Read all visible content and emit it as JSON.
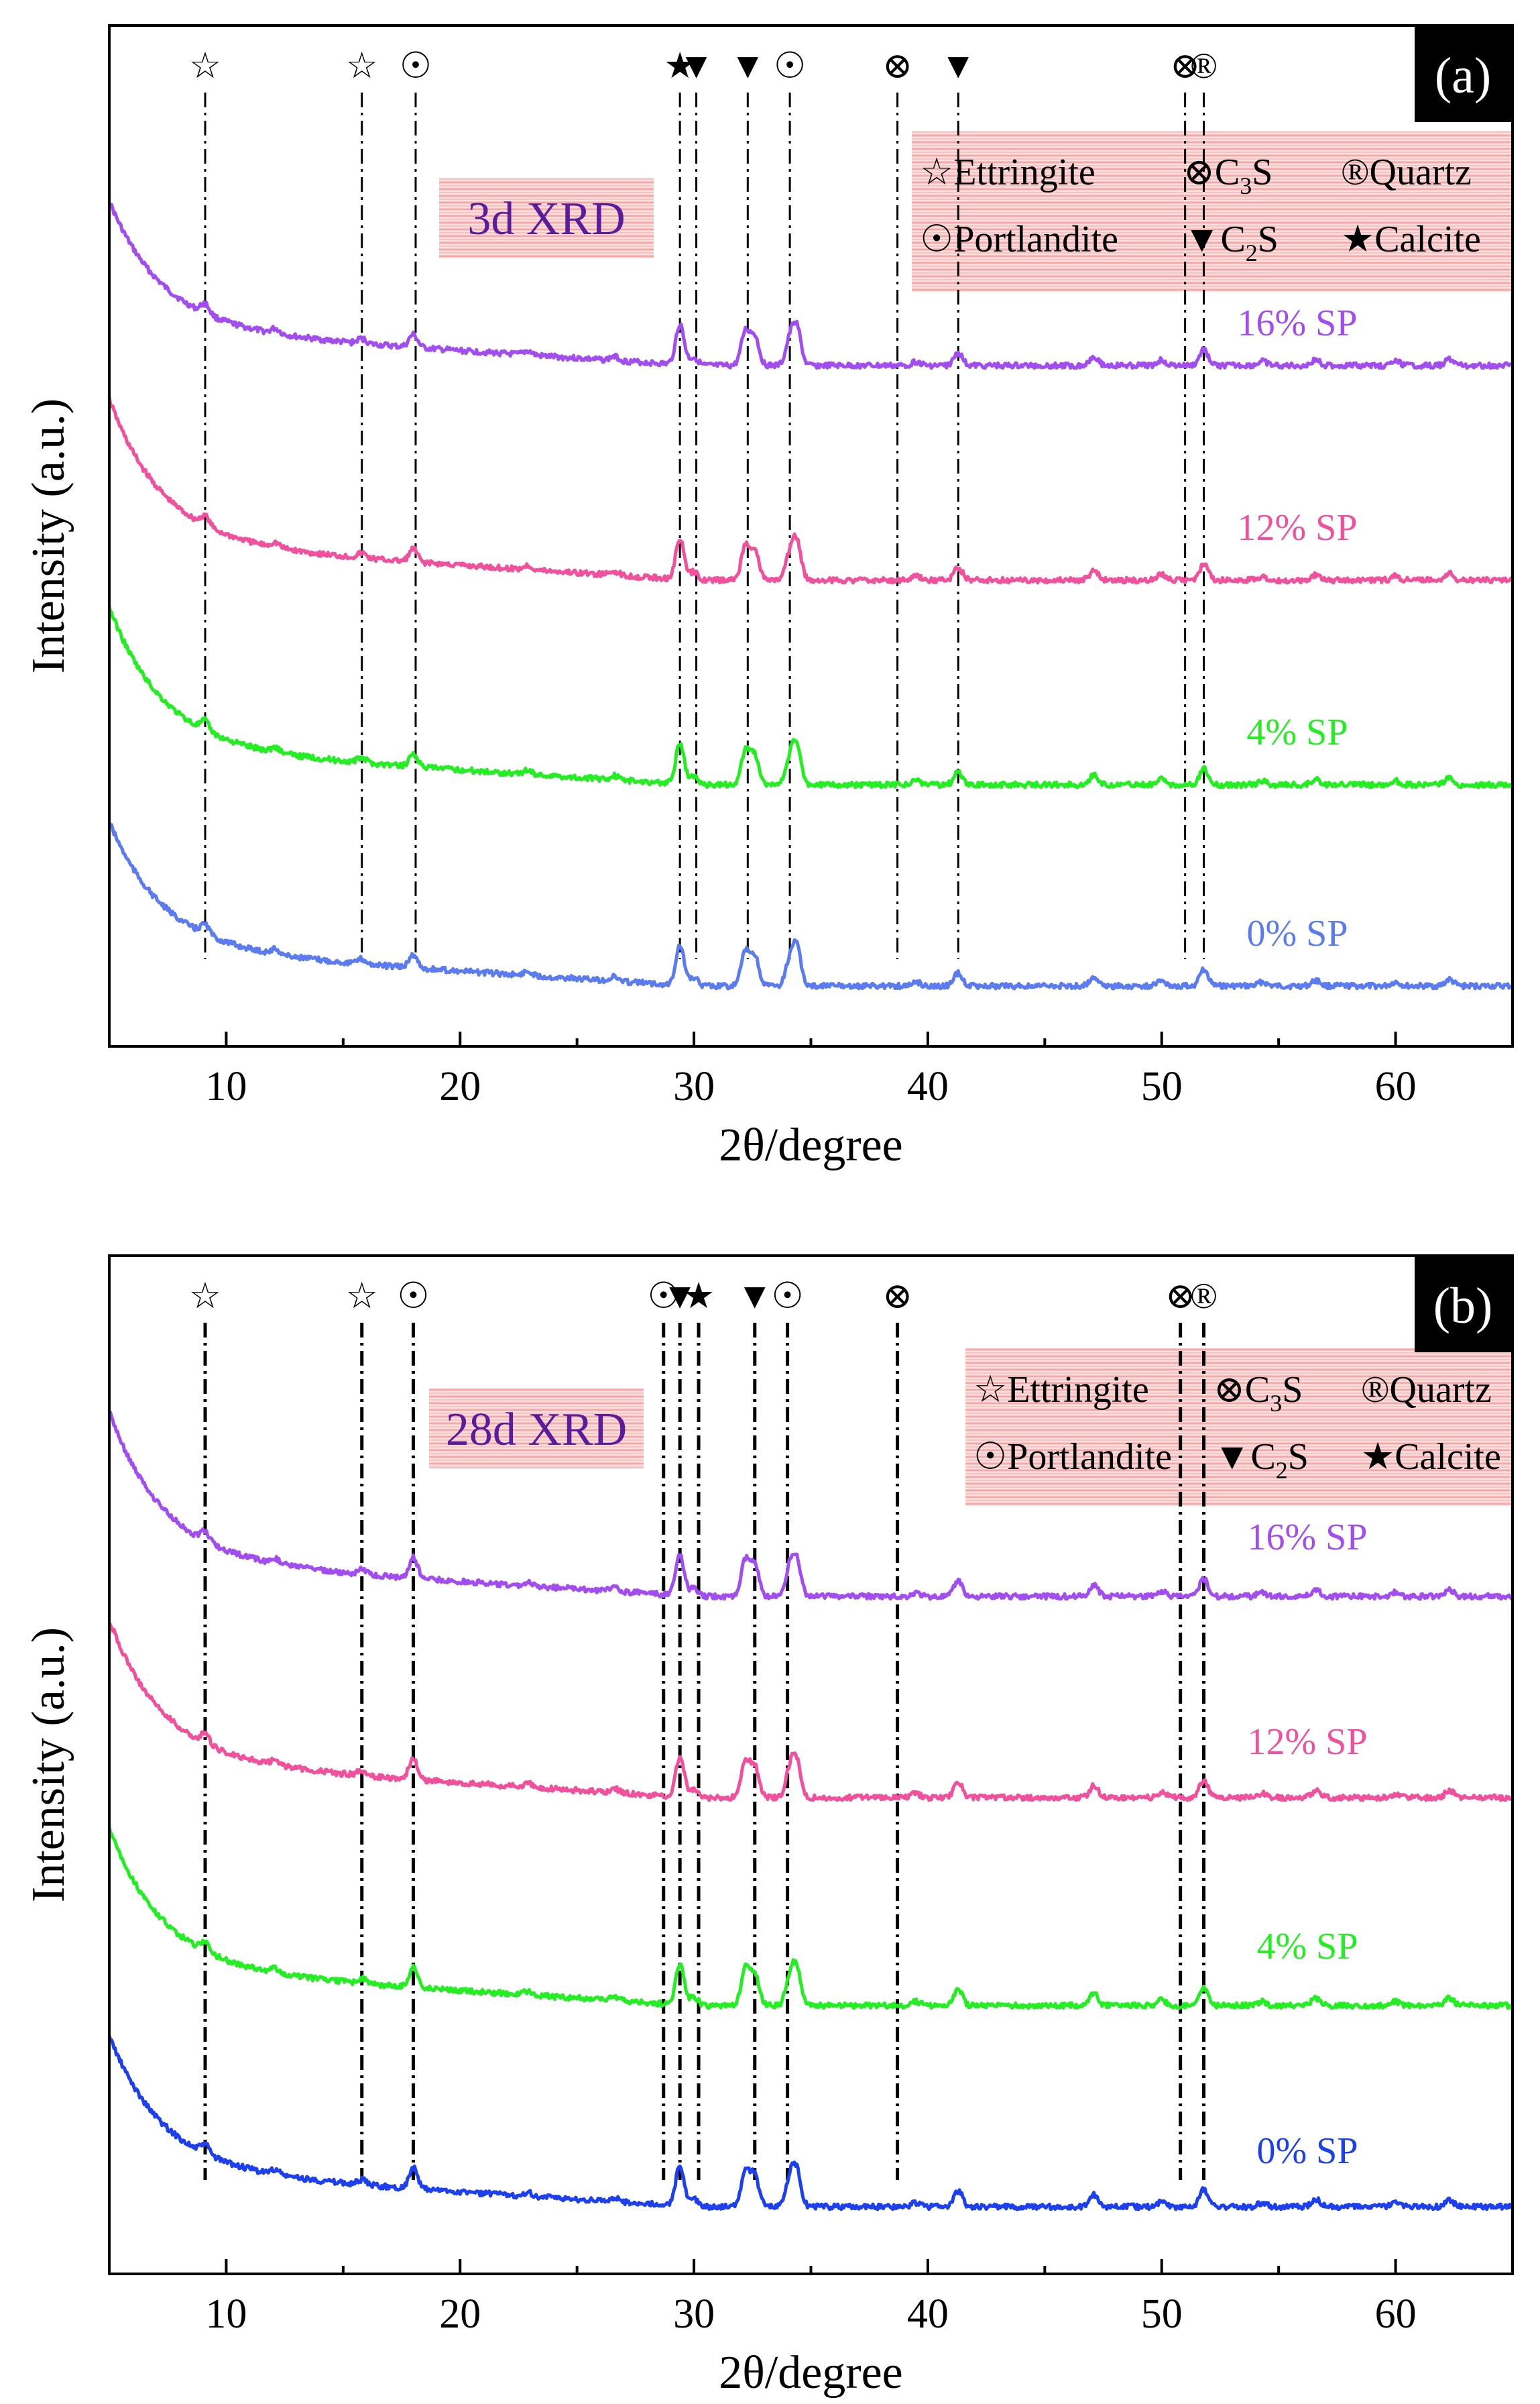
{
  "figure_colors": {
    "s16": "#a24df0",
    "s12": "#f0509c",
    "s4": "#22ee22",
    "s0a": "#5b7bf0",
    "s0b": "#1c3ff0",
    "label_box": "#f7c4c4",
    "label_text": "#5a1c9a"
  },
  "phase_symbols": {
    "ettringite": "☆",
    "c3s": "⊗",
    "quartz": "®",
    "portlandite": "☉",
    "c2s": "▼",
    "calcite": "★"
  },
  "chart_data": [
    {
      "type": "line",
      "panel_label": "(a)",
      "title": "3d XRD",
      "xlabel": "2θ/degree",
      "ylabel": "Intensity (a.u.)",
      "xlim": [
        5,
        65
      ],
      "xticks": [
        10,
        20,
        30,
        40,
        50,
        60
      ],
      "yticks_shown": false,
      "grid": false,
      "legend": {
        "position": "top-right",
        "entries": [
          {
            "symbol": "☆",
            "label": "Ettringite",
            "sub": ""
          },
          {
            "symbol": "⊗",
            "label": "C",
            "sub": "3",
            "after": "S"
          },
          {
            "symbol": "®",
            "label": "Quartz",
            "sub": ""
          },
          {
            "symbol": "☉",
            "label": "Portlandite",
            "sub": ""
          },
          {
            "symbol": "▼",
            "label": "C",
            "sub": "2",
            "after": "S"
          },
          {
            "symbol": "★",
            "label": "Calcite",
            "sub": ""
          }
        ]
      },
      "peak_markers": [
        {
          "x": 9.1,
          "symbol": "☆"
        },
        {
          "x": 15.8,
          "symbol": "☆"
        },
        {
          "x": 18.1,
          "symbol": "☉"
        },
        {
          "x": 29.4,
          "symbol": "★"
        },
        {
          "x": 30.1,
          "symbol": "▼"
        },
        {
          "x": 32.3,
          "symbol": "▼"
        },
        {
          "x": 34.1,
          "symbol": "☉"
        },
        {
          "x": 38.7,
          "symbol": "⊗"
        },
        {
          "x": 41.3,
          "symbol": "▼"
        },
        {
          "x": 51.0,
          "symbol": "⊗"
        },
        {
          "x": 51.8,
          "symbol": "®"
        }
      ],
      "series": [
        {
          "name": "16% SP",
          "offset": 3.0,
          "color": "#a24df0"
        },
        {
          "name": "12% SP",
          "offset": 2.0,
          "color": "#f0509c"
        },
        {
          "name": "4% SP",
          "offset": 1.0,
          "color": "#22ee22"
        },
        {
          "name": "0% SP",
          "offset": 0.0,
          "color": "#5b7bf0"
        }
      ],
      "peaks": [
        {
          "x": 9.1,
          "rel": 0.12
        },
        {
          "x": 12.1,
          "rel": 0.06
        },
        {
          "x": 15.8,
          "rel": 0.06
        },
        {
          "x": 18.0,
          "rel": 0.16
        },
        {
          "x": 22.9,
          "rel": 0.05
        },
        {
          "x": 26.6,
          "rel": 0.05
        },
        {
          "x": 29.4,
          "rel": 0.5
        },
        {
          "x": 30.0,
          "rel": 0.1
        },
        {
          "x": 32.2,
          "rel": 0.42
        },
        {
          "x": 32.6,
          "rel": 0.36
        },
        {
          "x": 34.1,
          "rel": 0.3
        },
        {
          "x": 34.4,
          "rel": 0.45
        },
        {
          "x": 39.5,
          "rel": 0.05
        },
        {
          "x": 41.3,
          "rel": 0.16
        },
        {
          "x": 47.1,
          "rel": 0.12
        },
        {
          "x": 50.0,
          "rel": 0.07
        },
        {
          "x": 51.8,
          "rel": 0.2
        },
        {
          "x": 54.3,
          "rel": 0.05
        },
        {
          "x": 56.6,
          "rel": 0.07
        },
        {
          "x": 60.0,
          "rel": 0.05
        },
        {
          "x": 62.3,
          "rel": 0.08
        }
      ]
    },
    {
      "type": "line",
      "panel_label": "(b)",
      "title": "28d XRD",
      "xlabel": "2θ/degree",
      "ylabel": "Intensity (a.u.)",
      "xlim": [
        5,
        65
      ],
      "xticks": [
        10,
        20,
        30,
        40,
        50,
        60
      ],
      "yticks_shown": false,
      "grid": false,
      "legend": {
        "position": "top-right",
        "entries": [
          {
            "symbol": "☆",
            "label": "Ettringite",
            "sub": ""
          },
          {
            "symbol": "⊗",
            "label": "C",
            "sub": "3",
            "after": "S"
          },
          {
            "symbol": "®",
            "label": "Quartz",
            "sub": ""
          },
          {
            "symbol": "☉",
            "label": "Portlandite",
            "sub": ""
          },
          {
            "symbol": "▼",
            "label": "C",
            "sub": "2",
            "after": "S"
          },
          {
            "symbol": "★",
            "label": "Calcite",
            "sub": ""
          }
        ]
      },
      "peak_markers": [
        {
          "x": 9.1,
          "symbol": "☆"
        },
        {
          "x": 15.8,
          "symbol": "☆"
        },
        {
          "x": 18.0,
          "symbol": "☉"
        },
        {
          "x": 28.7,
          "symbol": "☉"
        },
        {
          "x": 29.4,
          "symbol": "▼"
        },
        {
          "x": 30.2,
          "symbol": "★"
        },
        {
          "x": 32.6,
          "symbol": "▼"
        },
        {
          "x": 34.0,
          "symbol": "☉"
        },
        {
          "x": 38.7,
          "symbol": "⊗"
        },
        {
          "x": 50.8,
          "symbol": "⊗"
        },
        {
          "x": 51.8,
          "symbol": "®"
        }
      ],
      "series": [
        {
          "name": "16% SP",
          "offset": 3.0,
          "color": "#a24df0"
        },
        {
          "name": "12% SP",
          "offset": 2.0,
          "color": "#f0509c"
        },
        {
          "name": "4% SP",
          "offset": 1.0,
          "color": "#22ee22"
        },
        {
          "name": "0% SP",
          "offset": 0.0,
          "color": "#1c3ff0"
        }
      ],
      "peaks": [
        {
          "x": 9.1,
          "rel": 0.12
        },
        {
          "x": 12.1,
          "rel": 0.06
        },
        {
          "x": 15.8,
          "rel": 0.06
        },
        {
          "x": 18.0,
          "rel": 0.26
        },
        {
          "x": 22.9,
          "rel": 0.05
        },
        {
          "x": 26.6,
          "rel": 0.05
        },
        {
          "x": 29.4,
          "rel": 0.5
        },
        {
          "x": 30.0,
          "rel": 0.1
        },
        {
          "x": 32.2,
          "rel": 0.45
        },
        {
          "x": 32.6,
          "rel": 0.38
        },
        {
          "x": 34.1,
          "rel": 0.34
        },
        {
          "x": 34.4,
          "rel": 0.42
        },
        {
          "x": 39.5,
          "rel": 0.05
        },
        {
          "x": 41.3,
          "rel": 0.2
        },
        {
          "x": 47.1,
          "rel": 0.15
        },
        {
          "x": 50.0,
          "rel": 0.07
        },
        {
          "x": 51.8,
          "rel": 0.22
        },
        {
          "x": 54.3,
          "rel": 0.05
        },
        {
          "x": 56.6,
          "rel": 0.09
        },
        {
          "x": 60.0,
          "rel": 0.05
        },
        {
          "x": 62.3,
          "rel": 0.09
        }
      ]
    }
  ]
}
